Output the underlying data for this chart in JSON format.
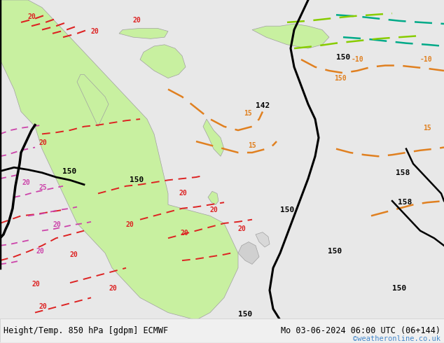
{
  "title_left": "Height/Temp. 850 hPa [gdpm] ECMWF",
  "title_right": "Mo 03-06-2024 06:00 UTC (06+144)",
  "copyright": "©weatheronline.co.uk",
  "background_color": "#e8e8e8",
  "land_green_color": "#c8f0a0",
  "land_gray_color": "#d0d0d0",
  "border_color": "#a0a0a0",
  "contour_black_color": "#000000",
  "contour_red_color": "#dd2222",
  "contour_orange_color": "#e08020",
  "contour_pink_color": "#cc44aa",
  "contour_teal_color": "#00aa88",
  "contour_lime_color": "#88cc00",
  "label_black": "#000000",
  "label_red": "#dd2222",
  "label_orange": "#e08020",
  "label_pink": "#cc44aa",
  "bottom_bar_color": "#f0f0f0",
  "bottom_text_color": "#000000",
  "copyright_color": "#4488cc",
  "figsize": [
    6.34,
    4.9
  ],
  "dpi": 100
}
